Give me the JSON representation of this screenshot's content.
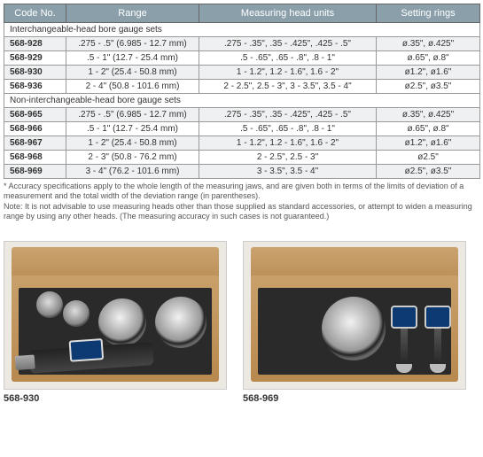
{
  "table": {
    "headers": {
      "code": "Code No.",
      "range": "Range",
      "heads": "Measuring head units",
      "rings": "Setting rings"
    },
    "section1": "Interchangeable-head bore gauge sets",
    "section2": "Non-interchangeable-head bore gauge sets",
    "rows1": [
      {
        "code": "568-928",
        "range": ".275 - .5\" (6.985 - 12.7 mm)",
        "heads": ".275 - .35\", .35 - .425\", .425 - .5\"",
        "rings": "ø.35\", ø.425\""
      },
      {
        "code": "568-929",
        "range": ".5 - 1\" (12.7 - 25.4 mm)",
        "heads": ".5 - .65\", .65 - .8\", .8 - 1\"",
        "rings": "ø.65\", ø.8\""
      },
      {
        "code": "568-930",
        "range": "1 - 2\" (25.4 - 50.8 mm)",
        "heads": "1 - 1.2\", 1.2 - 1.6\", 1.6 - 2\"",
        "rings": "ø1.2\", ø1.6\""
      },
      {
        "code": "568-936",
        "range": "2 - 4\" (50.8 - 101.6 mm)",
        "heads": "2 - 2.5\", 2.5 - 3\", 3 - 3.5\", 3.5 - 4\"",
        "rings": "ø2.5\", ø3.5\""
      }
    ],
    "rows2": [
      {
        "code": "568-965",
        "range": ".275 - .5\" (6.985 - 12.7 mm)",
        "heads": ".275 - .35\", .35 - .425\", .425 - .5\"",
        "rings": "ø.35\", ø.425\""
      },
      {
        "code": "568-966",
        "range": ".5 - 1\" (12.7 - 25.4 mm)",
        "heads": ".5 - .65\", .65 - .8\", .8 - 1\"",
        "rings": "ø.65\", ø.8\""
      },
      {
        "code": "568-967",
        "range": "1 - 2\" (25.4 - 50.8 mm)",
        "heads": "1 - 1.2\", 1.2 - 1.6\", 1.6 - 2\"",
        "rings": "ø1.2\", ø1.6\""
      },
      {
        "code": "568-968",
        "range": "2 - 3\" (50.8 - 76.2 mm)",
        "heads": "2 - 2.5\", 2.5 - 3\"",
        "rings": "ø2.5\""
      },
      {
        "code": "568-969",
        "range": "3 - 4\" (76.2 - 101.6 mm)",
        "heads": "3 - 3.5\", 3.5 - 4\"",
        "rings": "ø2.5\", ø3.5\""
      }
    ]
  },
  "footnotes": {
    "line1": "* Accuracy specifications apply to the whole length of the measuring jaws, and are given both in terms of the limits of deviation of a measurement and the total width of the deviation range (in parentheses).",
    "line2": "Note: It is not advisable to use measuring heads other than those supplied as standard accessories, or attempt to widen a measuring range by using any other heads. (The measuring accuracy in such cases is not guaranteed.)"
  },
  "images": {
    "left_caption": "568-930",
    "right_caption": "568-969"
  },
  "style": {
    "header_bg": "#8a9faa",
    "alt_row_bg": "#eef0f1",
    "border_color": "#999",
    "font_size_cell": 10,
    "font_size_header": 11,
    "font_size_footnote": 9
  }
}
